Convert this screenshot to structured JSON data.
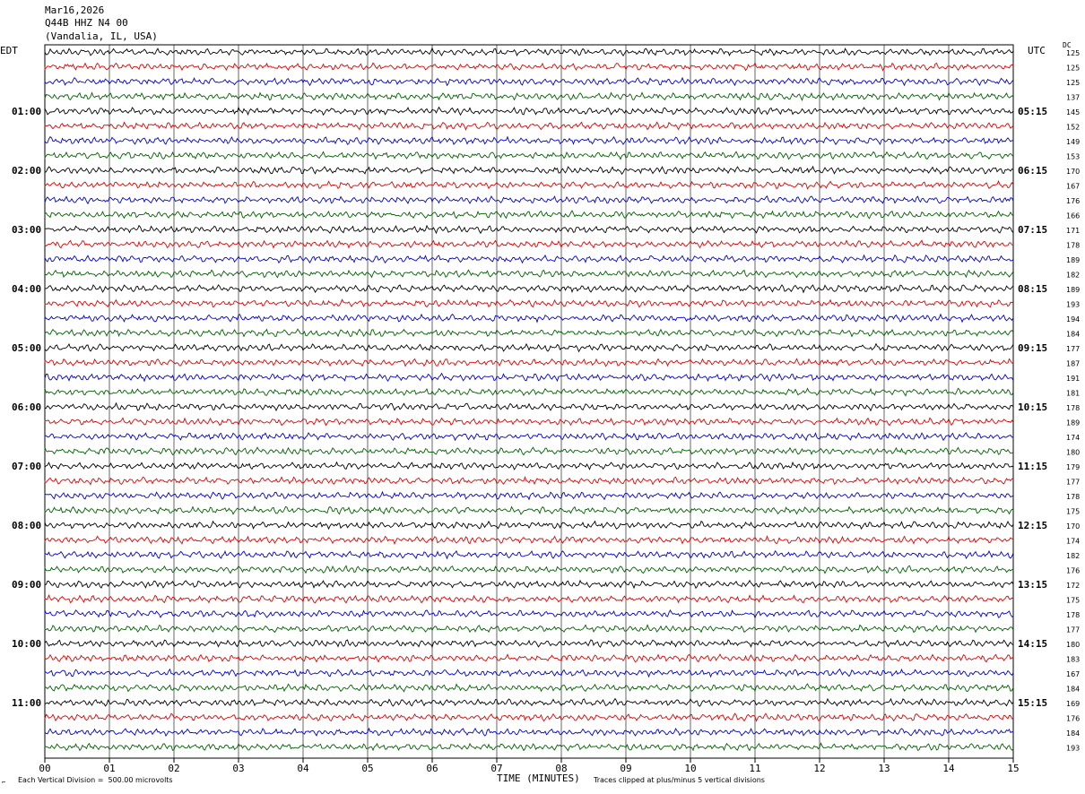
{
  "header": {
    "date": "Mar16,2026",
    "channel": "Q44B HHZ N4 00",
    "location": "(Vandalia, IL, USA)"
  },
  "left_timezone": "EDT",
  "right_timezone": "UTC",
  "dc_label": "DC",
  "footer": {
    "scale_text": "Each Vertical Division =  500.00 microvolts",
    "clip_text": "Traces clipped at plus/minus 5 vertical divisions"
  },
  "colors": {
    "trace_cycle": [
      "#000000",
      "#e00000",
      "#0000d0",
      "#006000"
    ],
    "grid": "#000000"
  },
  "chart_data": {
    "type": "line",
    "title": "Q44B HHZ N4 00",
    "xlabel": "TIME (MINUTES)",
    "ylabel": "",
    "xlim": [
      0,
      15
    ],
    "x_ticks": [
      "00",
      "01",
      "02",
      "03",
      "04",
      "05",
      "06",
      "07",
      "08",
      "09",
      "10",
      "11",
      "12",
      "13",
      "14",
      "15"
    ],
    "traces_per_hour": 4,
    "trace_count": 48,
    "left_hour_labels": [
      "01:00",
      "02:00",
      "03:00",
      "04:00",
      "05:00",
      "06:00",
      "07:00",
      "08:00",
      "09:00",
      "10:00",
      "11:00"
    ],
    "right_hour_labels": [
      "05:15",
      "06:15",
      "07:15",
      "08:15",
      "09:15",
      "10:15",
      "11:15",
      "12:15",
      "13:15",
      "14:15",
      "15:15"
    ],
    "dc_offsets": [
      125,
      125,
      125,
      137,
      145,
      152,
      149,
      153,
      170,
      167,
      176,
      166,
      171,
      178,
      189,
      182,
      189,
      193,
      194,
      184,
      177,
      187,
      191,
      181,
      178,
      189,
      174,
      180,
      179,
      177,
      178,
      175,
      170,
      174,
      182,
      176,
      172,
      175,
      178,
      177,
      180,
      183,
      167,
      184,
      169,
      176,
      184,
      193
    ],
    "clip_divisions": 5,
    "units": "microvolts",
    "division_value": 500.0
  }
}
